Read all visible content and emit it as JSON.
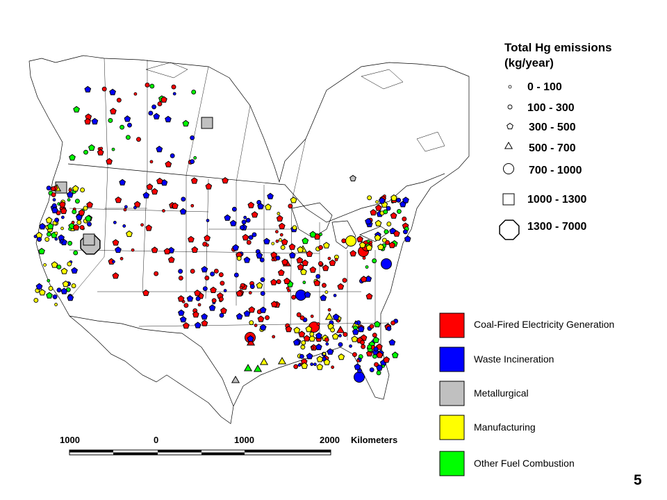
{
  "legend": {
    "title_line1": "Total Hg emissions",
    "title_line2": "(kg/year)",
    "size_classes": [
      {
        "label": "0 - 100",
        "shape": "tiny-circle-icon"
      },
      {
        "label": "100 - 300",
        "shape": "small-circle-icon"
      },
      {
        "label": "300 - 500",
        "shape": "pentagon-icon"
      },
      {
        "label": "500 - 700",
        "shape": "triangle-icon"
      },
      {
        "label": "700 - 1000",
        "shape": "circle-icon"
      },
      {
        "label": "1000 - 1300",
        "shape": "square-icon"
      },
      {
        "label": "1300 - 7000",
        "shape": "octagon-icon"
      }
    ],
    "categories": [
      {
        "label": "Coal-Fired Electricity Generation",
        "color": "#ff0000"
      },
      {
        "label": "Waste Incineration",
        "color": "#0000ff"
      },
      {
        "label": "Metallurgical",
        "color": "#c0c0c0"
      },
      {
        "label": "Manufacturing",
        "color": "#ffff00"
      },
      {
        "label": "Other Fuel Combustion",
        "color": "#00ff00"
      }
    ]
  },
  "scale_bar": {
    "ticks": [
      "1000",
      "0",
      "1000",
      "2000"
    ],
    "unit": "Kilometers"
  },
  "page_number": "5"
}
